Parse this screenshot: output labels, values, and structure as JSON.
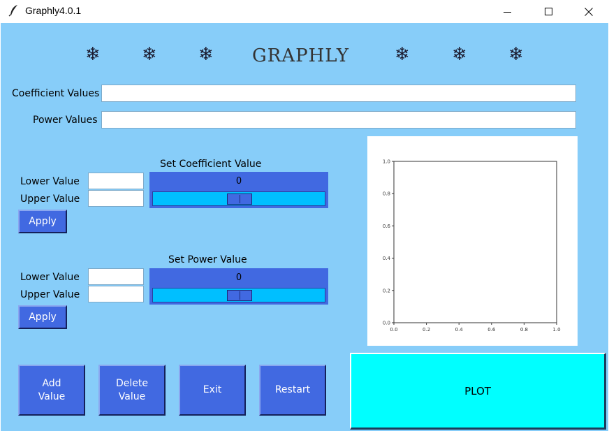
{
  "window": {
    "title": "Graphly4.0.1",
    "minimize_icon": "minimize-icon",
    "maximize_icon": "maximize-icon",
    "close_icon": "close-icon"
  },
  "header": {
    "title": "GRAPHLY",
    "snowflake": "❄"
  },
  "inputs": {
    "coefficient_label": "Coefficient Values",
    "coefficient_value": "",
    "power_label": "Power Values",
    "power_value": ""
  },
  "coefficient_section": {
    "title": "Set Coefficient Value",
    "lower_label": "Lower Value",
    "upper_label": "Upper Value",
    "lower_value": "",
    "upper_value": "",
    "apply_label": "Apply",
    "slider_value": "0"
  },
  "power_section": {
    "title": "Set Power Value",
    "lower_label": "Lower Value",
    "upper_label": "Upper Value",
    "lower_value": "",
    "upper_value": "",
    "apply_label": "Apply",
    "slider_value": "0"
  },
  "buttons": {
    "add_line1": "Add",
    "add_line2": "Value",
    "delete_line1": "Delete",
    "delete_line2": "Value",
    "exit": "Exit",
    "restart": "Restart",
    "plot": "PLOT"
  },
  "plot": {
    "x_ticks": [
      "0.0",
      "0.2",
      "0.4",
      "0.6",
      "0.8",
      "1.0"
    ],
    "y_ticks": [
      "0.0",
      "0.2",
      "0.4",
      "0.6",
      "0.8",
      "1.0"
    ]
  },
  "colors": {
    "background": "#87cdf9",
    "button": "#4169e1",
    "slider_trough": "#00bfff",
    "plot_button": "#00ffff"
  }
}
